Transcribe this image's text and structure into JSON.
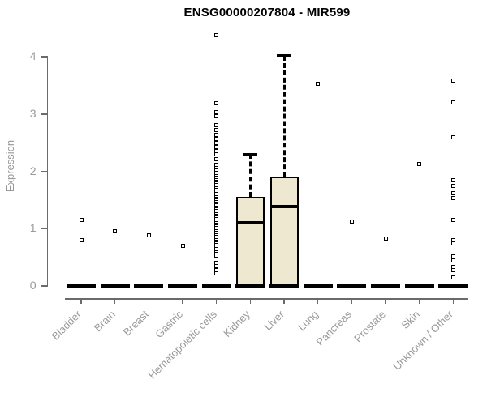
{
  "title": "ENSG00000207804 - MIR599",
  "colors": {
    "box_fill": "#EEE8D1",
    "box_border": "#000000",
    "median": "#000000",
    "point": "#000000",
    "zero_bar": "#000000",
    "axis": "#6b6b6b",
    "tick_label": "#999999",
    "title": "#000000"
  },
  "chart_data": {
    "type": "boxplot",
    "title": "ENSG00000207804 - MIR599",
    "ylabel": "Expression",
    "xlabel": "",
    "ylim": [
      0,
      4
    ],
    "yticks": [
      0,
      1,
      2,
      3,
      4
    ],
    "grid": false,
    "legend": false,
    "zero_line_value": 0,
    "categories": [
      "Bladder",
      "Brain",
      "Breast",
      "Gastric",
      "Hematopoietic cells",
      "Kidney",
      "Liver",
      "Lung",
      "Pancreas",
      "Prostate",
      "Skin",
      "Unknown / Other"
    ],
    "series": [
      {
        "name": "Bladder",
        "zero_bar": true,
        "points": [
          1.15,
          0.8
        ]
      },
      {
        "name": "Brain",
        "zero_bar": true,
        "points": [
          0.95
        ]
      },
      {
        "name": "Breast",
        "zero_bar": true,
        "points": [
          0.88
        ]
      },
      {
        "name": "Gastric",
        "zero_bar": true,
        "points": [
          0.7
        ]
      },
      {
        "name": "Hematopoietic cells",
        "zero_bar": true,
        "points": [
          4.38,
          3.19,
          3.03,
          2.96,
          2.8,
          2.72,
          2.63,
          2.57,
          2.49,
          2.42,
          2.35,
          2.3,
          2.21,
          2.12,
          2.06,
          2.02,
          1.97,
          1.94,
          1.91,
          1.88,
          1.85,
          1.82,
          1.79,
          1.76,
          1.73,
          1.7,
          1.67,
          1.64,
          1.61,
          1.58,
          1.55,
          1.52,
          1.49,
          1.46,
          1.43,
          1.4,
          1.37,
          1.34,
          1.31,
          1.28,
          1.25,
          1.22,
          1.19,
          1.16,
          1.13,
          1.1,
          1.07,
          1.04,
          1.01,
          0.98,
          0.95,
          0.92,
          0.89,
          0.86,
          0.83,
          0.8,
          0.77,
          0.74,
          0.71,
          0.68,
          0.65,
          0.62,
          0.59,
          0.56,
          0.53,
          0.4,
          0.35,
          0.28,
          0.22
        ]
      },
      {
        "name": "Kidney",
        "zero_bar": true,
        "points": [],
        "box": {
          "q1": 0,
          "median": 1.1,
          "q3": 1.55,
          "whisker_low": 0,
          "whisker_high": 2.3
        }
      },
      {
        "name": "Liver",
        "zero_bar": true,
        "points": [],
        "box": {
          "q1": 0,
          "median": 1.39,
          "q3": 1.91,
          "whisker_low": 0,
          "whisker_high": 4.02
        }
      },
      {
        "name": "Lung",
        "zero_bar": true,
        "points": [
          3.52
        ]
      },
      {
        "name": "Pancreas",
        "zero_bar": true,
        "points": [
          1.13
        ]
      },
      {
        "name": "Prostate",
        "zero_bar": true,
        "points": [
          0.83
        ]
      },
      {
        "name": "Skin",
        "zero_bar": true,
        "points": [
          2.13
        ]
      },
      {
        "name": "Unknown / Other",
        "zero_bar": true,
        "points": [
          3.58,
          3.2,
          2.59,
          1.84,
          1.74,
          1.62,
          1.53,
          1.15,
          0.8,
          0.74,
          0.51,
          0.44,
          0.33,
          0.28,
          0.15
        ]
      }
    ]
  }
}
